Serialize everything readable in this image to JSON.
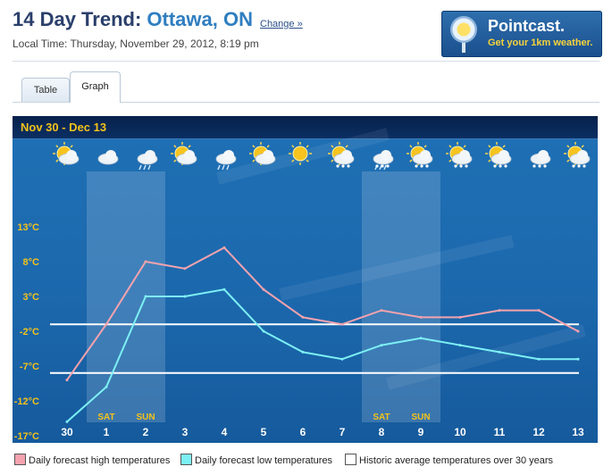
{
  "header": {
    "title_prefix": "14 Day Trend:",
    "city": "Ottawa, ON",
    "change_link": "Change »",
    "local_time": "Local Time: Thursday, November 29, 2012, 8:19 pm"
  },
  "ad": {
    "brand": "Pointcast.",
    "tagline": "Get your 1km weather."
  },
  "tabs": [
    {
      "label": "Table",
      "active": false
    },
    {
      "label": "Graph",
      "active": true
    }
  ],
  "graph": {
    "date_range": "Nov 30  -  Dec 13",
    "icons": [
      "sun-cloud-icon",
      "cloud-icon",
      "rain-cloud-icon",
      "sun-cloud-icon",
      "rain-cloud-icon",
      "sun-cloud-icon",
      "sun-icon",
      "sun-snow-icon",
      "snow-rain-icon",
      "sun-snow-icon",
      "sun-snow-icon",
      "sun-snow-icon",
      "snow-cloud-icon",
      "sun-snow-icon"
    ],
    "days": [
      "30",
      "1",
      "2",
      "3",
      "4",
      "5",
      "6",
      "7",
      "8",
      "9",
      "10",
      "11",
      "12",
      "13"
    ],
    "weekend_labels": [
      {
        "index": 1,
        "label": "SAT"
      },
      {
        "index": 2,
        "label": "SUN"
      },
      {
        "index": 8,
        "label": "SAT"
      },
      {
        "index": 9,
        "label": "SUN"
      }
    ],
    "y_ticks": [
      "13°C",
      "8°C",
      "3°C",
      "-2°C",
      "-7°C",
      "-12°C",
      "-17°C"
    ],
    "y_tick_values": [
      13,
      8,
      3,
      -2,
      -7,
      -12,
      -17
    ],
    "high_temps": [
      -9,
      -1,
      8,
      7,
      10,
      4,
      0,
      -1,
      1,
      0,
      0,
      1,
      1,
      -2
    ],
    "low_temps": [
      -15,
      -10,
      3,
      3,
      4,
      -2,
      -5,
      -6,
      -4,
      -3,
      -4,
      -5,
      -6,
      -6
    ],
    "historic_high": -1,
    "historic_low": -8,
    "colors": {
      "high": "#f4a3ae",
      "low": "#7df0f5",
      "historic": "#ffffff",
      "label": "#f3c21b"
    }
  },
  "legend": {
    "high": "Daily forecast high temperatures",
    "low": "Daily forecast low temperatures",
    "historic": "Historic average temperatures over 30 years"
  }
}
